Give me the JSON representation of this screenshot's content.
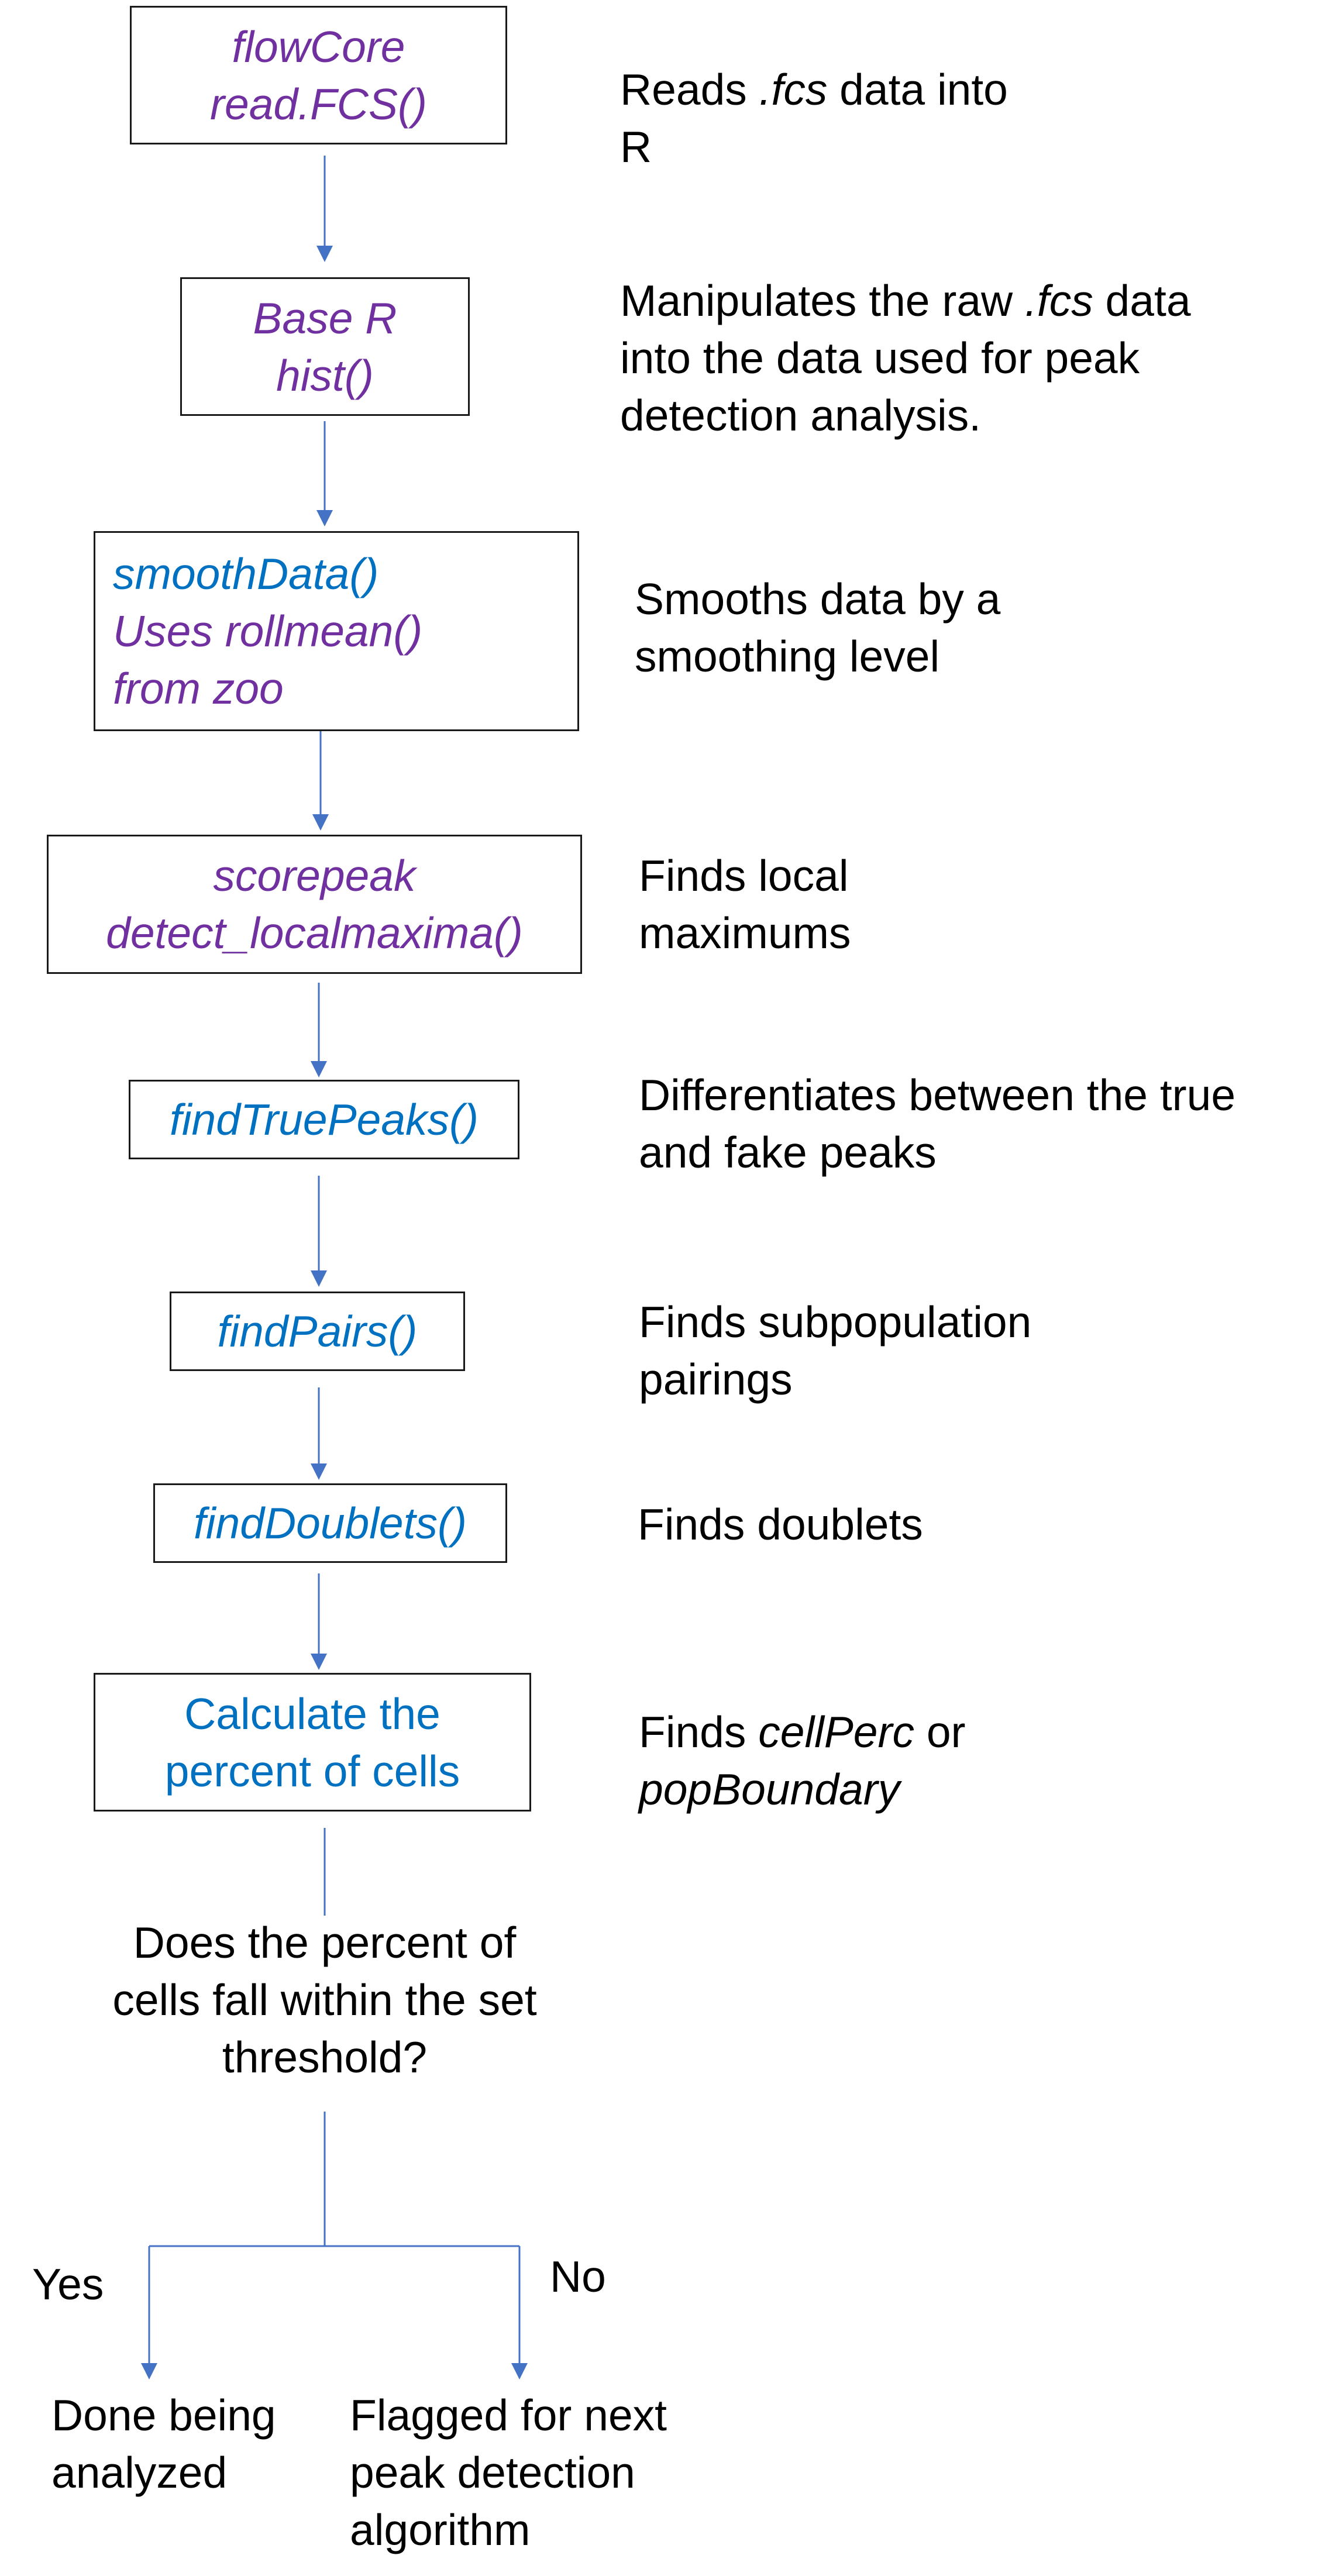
{
  "colors": {
    "purple": "#7030a0",
    "blue": "#0070c0",
    "line": "#4472c4",
    "border": "#1a1a1a",
    "text": "#000000"
  },
  "steps": [
    {
      "lines": [
        "flowCore",
        "read.FCS()"
      ],
      "line_colors": [
        "purple",
        "purple"
      ],
      "italic": true,
      "desc": [
        [
          "Reads ",
          "i:.fcs",
          " data into"
        ],
        [
          "R"
        ]
      ]
    },
    {
      "lines": [
        "Base R",
        "hist()"
      ],
      "line_colors": [
        "purple",
        "purple"
      ],
      "italic": true,
      "desc": [
        [
          "Manipulates the raw ",
          "i:.fcs",
          " data"
        ],
        [
          "into the data used for peak"
        ],
        [
          "detection analysis."
        ]
      ]
    },
    {
      "lines": [
        "smoothData()",
        "Uses rollmean()",
        "from zoo"
      ],
      "line_colors": [
        "blue",
        "purple",
        "purple"
      ],
      "italic": true,
      "desc": [
        [
          "Smooths data by a"
        ],
        [
          "smoothing level"
        ]
      ]
    },
    {
      "lines": [
        "scorepeak",
        "detect_localmaxima()"
      ],
      "line_colors": [
        "purple",
        "purple"
      ],
      "italic": true,
      "desc": [
        [
          "Finds local"
        ],
        [
          "maximums"
        ]
      ]
    },
    {
      "lines": [
        "findTruePeaks()"
      ],
      "line_colors": [
        "blue"
      ],
      "italic": true,
      "desc": [
        [
          "Differentiates between the true"
        ],
        [
          "and fake peaks"
        ]
      ]
    },
    {
      "lines": [
        "findPairs()"
      ],
      "line_colors": [
        "blue"
      ],
      "italic": true,
      "desc": [
        [
          "Finds subpopulation"
        ],
        [
          "pairings"
        ]
      ]
    },
    {
      "lines": [
        "findDoublets()"
      ],
      "line_colors": [
        "blue"
      ],
      "italic": true,
      "desc": [
        [
          "Finds doublets"
        ]
      ]
    },
    {
      "lines": [
        "Calculate the",
        "percent of cells"
      ],
      "line_colors": [
        "blue",
        "blue"
      ],
      "italic": false,
      "desc": [
        [
          "Finds ",
          "i:cellPerc",
          " or"
        ],
        [
          "i:popBoundary"
        ]
      ]
    }
  ],
  "decision": {
    "question": [
      "Does the percent of",
      "cells fall within the set",
      "threshold?"
    ],
    "yes_label": "Yes",
    "no_label": "No",
    "yes_outcome": [
      "Done being",
      "analyzed"
    ],
    "no_outcome": [
      "Flagged for next",
      "peak detection",
      "algorithm"
    ]
  }
}
